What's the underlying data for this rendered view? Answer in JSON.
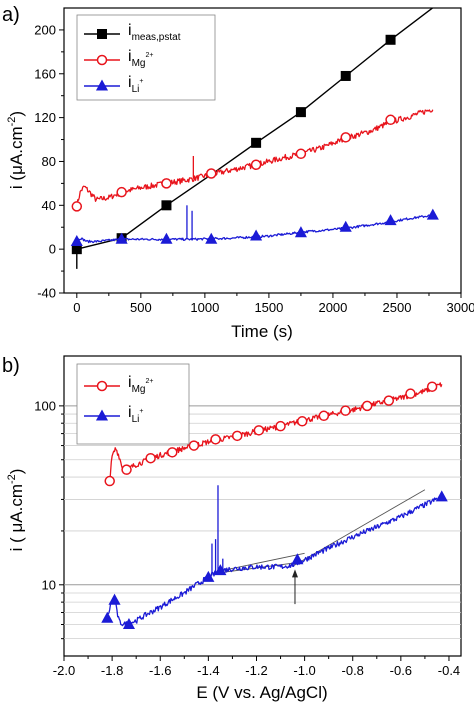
{
  "chart_data": [
    {
      "panel_label": "a)",
      "type": "line",
      "xlabel": "Time (s)",
      "ylabel": "i (μA.cm",
      "ylabel_sup": "-2",
      "ylabel_end": ")",
      "xlim": [
        -100,
        3000
      ],
      "ylim": [
        -40,
        220
      ],
      "xticks": [
        0,
        500,
        1000,
        1500,
        2000,
        2500,
        3000
      ],
      "yticks": [
        -40,
        0,
        40,
        80,
        120,
        160,
        200
      ],
      "grid": false,
      "legend_position": "top-left",
      "series": [
        {
          "name": "i",
          "sub": "meas,pstat",
          "sup": "",
          "color": "#000000",
          "marker": "square",
          "fill": "#000000",
          "x": [
            0,
            0,
            350,
            700,
            1050,
            1400,
            1750,
            2100,
            2450,
            2800
          ],
          "y": [
            -18,
            0,
            10,
            40,
            68,
            97,
            125,
            158,
            191,
            222
          ],
          "markers_x": [
            0,
            350,
            700,
            1400,
            1750,
            2100,
            2450
          ],
          "markers_y": [
            0,
            10,
            40,
            97,
            125,
            158,
            191
          ]
        },
        {
          "name": "i",
          "sub": "Mg",
          "sup": "2+",
          "color": "#e8141c",
          "marker": "circle",
          "fill": "#ffffff",
          "x": [
            0,
            30,
            60,
            100,
            150,
            250,
            350,
            500,
            700,
            900,
            1050,
            1200,
            1400,
            1600,
            1750,
            1900,
            2100,
            2300,
            2450,
            2600,
            2780
          ],
          "y": [
            40,
            53,
            57,
            52,
            45,
            47,
            52,
            56,
            60,
            64,
            68,
            72,
            77,
            83,
            87,
            92,
            101,
            108,
            116,
            121,
            128
          ],
          "markers_x": [
            0,
            350,
            700,
            1050,
            1400,
            1750,
            2100,
            2450
          ],
          "markers_y": [
            39,
            52,
            60,
            69,
            77,
            87,
            102,
            118
          ],
          "spikes": [
            [
              910,
              85
            ]
          ]
        },
        {
          "name": "i",
          "sub": "Li",
          "sup": "+",
          "color": "#1b1bd6",
          "marker": "triangle",
          "fill": "#1b1bd6",
          "x": [
            0,
            30,
            80,
            150,
            350,
            600,
            900,
            1200,
            1500,
            1800,
            2100,
            2400,
            2600,
            2780
          ],
          "y": [
            8,
            10,
            7,
            7,
            9,
            9,
            9,
            10,
            12,
            16,
            19,
            24,
            28,
            31
          ],
          "markers_x": [
            0,
            350,
            700,
            1050,
            1400,
            1750,
            2100,
            2450,
            2780
          ],
          "markers_y": [
            7,
            9,
            9,
            9,
            12,
            15,
            20,
            26,
            31
          ],
          "spikes": [
            [
              860,
              40
            ],
            [
              900,
              35
            ]
          ]
        }
      ]
    },
    {
      "panel_label": "b)",
      "type": "line",
      "xlabel": "E (V vs. Ag/AgCl)",
      "ylabel": "i ( μA.cm",
      "ylabel_sup": "-2",
      "ylabel_end": ")",
      "xlim": [
        -2.0,
        -0.35
      ],
      "ylim": [
        4,
        190
      ],
      "yscale": "log",
      "xticks": [
        -2.0,
        -1.8,
        -1.6,
        -1.4,
        -1.2,
        -1.0,
        -0.8,
        -0.6,
        -0.4
      ],
      "xticklabels": [
        "-2.0",
        "-1.8",
        "-1.6",
        "-1.4",
        "-1.2",
        "-1.0",
        "-0.8",
        "-0.6",
        "-0.4"
      ],
      "yticks": [
        10,
        100
      ],
      "yticklabels": [
        "10",
        "100"
      ],
      "grid": true,
      "legend_position": "top-left",
      "series": [
        {
          "name": "i",
          "sub": "Mg",
          "sup": "2+",
          "color": "#e8141c",
          "marker": "circle",
          "fill": "#ffffff",
          "x": [
            -1.81,
            -1.8,
            -1.785,
            -1.77,
            -1.76,
            -1.74,
            -1.7,
            -1.6,
            -1.5,
            -1.4,
            -1.3,
            -1.2,
            -1.1,
            -1.0,
            -0.9,
            -0.8,
            -0.7,
            -0.6,
            -0.5,
            -0.43
          ],
          "y": [
            38,
            52,
            58,
            52,
            46,
            44,
            47,
            53,
            58,
            63,
            67,
            72,
            77,
            83,
            89,
            95,
            103,
            111,
            121,
            132
          ],
          "markers_x": [
            -1.81,
            -1.74,
            -1.64,
            -1.55,
            -1.46,
            -1.37,
            -1.28,
            -1.19,
            -1.1,
            -1.01,
            -0.92,
            -0.83,
            -0.74,
            -0.65,
            -0.56,
            -0.47
          ],
          "markers_y": [
            38,
            44,
            51,
            55,
            60,
            65,
            68,
            73,
            77,
            82,
            88,
            94,
            100,
            107,
            117,
            128
          ],
          "spikes": []
        },
        {
          "name": "i",
          "sub": "Li",
          "sup": "+",
          "color": "#1b1bd6",
          "marker": "triangle",
          "fill": "#1b1bd6",
          "x": [
            -1.82,
            -1.8,
            -1.79,
            -1.78,
            -1.77,
            -1.75,
            -1.7,
            -1.6,
            -1.5,
            -1.4,
            -1.35,
            -1.3,
            -1.2,
            -1.1,
            -1.05,
            -1.0,
            -0.9,
            -0.8,
            -0.7,
            -0.6,
            -0.5,
            -0.43
          ],
          "y": [
            6.5,
            8.2,
            8.5,
            7,
            6.2,
            6,
            6.3,
            7.5,
            9,
            11,
            12,
            12.3,
            12.6,
            12.6,
            12.9,
            13.8,
            16,
            18.5,
            21,
            24,
            28,
            31
          ],
          "markers_x": [
            -1.82,
            -1.79,
            -1.73,
            -1.4,
            -1.35,
            -1.03,
            -0.43
          ],
          "markers_y": [
            6.5,
            8.2,
            6,
            11,
            12,
            13.8,
            31
          ],
          "spikes": [
            [
              -1.385,
              17
            ],
            [
              -1.37,
              18
            ],
            [
              -1.36,
              36
            ],
            [
              -1.34,
              14
            ]
          ]
        }
      ],
      "fit_lines": [
        {
          "x": [
            -1.37,
            -1.05
          ],
          "y": [
            11.6,
            13.2
          ]
        },
        {
          "x": [
            -1.37,
            -1.0
          ],
          "y": [
            11.8,
            15.0
          ]
        },
        {
          "x": [
            -1.05,
            -0.5
          ],
          "y": [
            12.7,
            34
          ]
        }
      ],
      "arrow": {
        "x": -1.04,
        "y_tail": 7.8,
        "y_head": 12.2
      }
    }
  ]
}
